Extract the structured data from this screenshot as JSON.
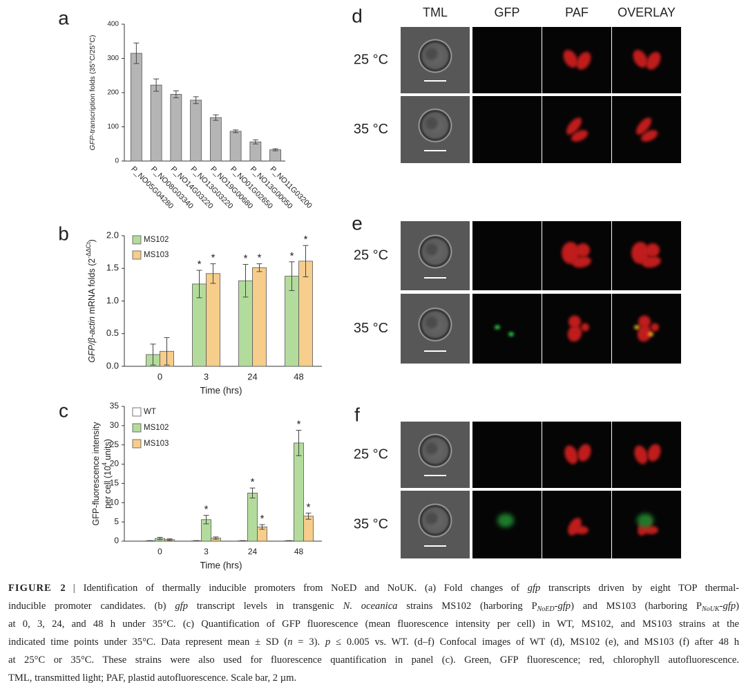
{
  "chart_data": [
    {
      "type": "bar",
      "panel": "a",
      "y_label": [
        [
          {
            "t": "GFP",
            "i": true
          },
          {
            "t": "-transcription folds (35°C/25°C)"
          }
        ]
      ],
      "categories": [
        "P_NO05G04280",
        "P_NO08G03340",
        "P_NO14G03220",
        "P_NO13G03220",
        "P_NO19G00680",
        "P_NO01G02650",
        "P_NO13G00050",
        "P_NO11G03200"
      ],
      "values": [
        315,
        222,
        195,
        178,
        127,
        87,
        56,
        33
      ],
      "errors": [
        30,
        18,
        10,
        10,
        8,
        4,
        6,
        3
      ],
      "color": "#b5b5b5",
      "ylim": [
        0,
        400
      ],
      "yticks": [
        0,
        100,
        200,
        300,
        400
      ]
    },
    {
      "type": "grouped_bar",
      "panel": "b",
      "y_label": [
        [
          {
            "t": "GFP/β-actin",
            "i": true
          },
          {
            "t": " mRNA folds (2"
          },
          {
            "t": "-ΔΔCt",
            "sup": true
          },
          {
            "t": ")"
          }
        ]
      ],
      "x_label": "Time (hrs)",
      "categories": [
        "0",
        "3",
        "24",
        "48"
      ],
      "series": [
        {
          "name": "MS102",
          "color": "#b3dc9c",
          "values": [
            0.18,
            1.26,
            1.31,
            1.38
          ],
          "errors": [
            0.16,
            0.21,
            0.25,
            0.22
          ],
          "markers": [
            null,
            "*",
            "*",
            "*"
          ]
        },
        {
          "name": "MS103",
          "color": "#f6cd8b",
          "values": [
            0.23,
            1.42,
            1.51,
            1.61
          ],
          "errors": [
            0.21,
            0.15,
            0.06,
            0.24
          ],
          "markers": [
            null,
            "*",
            "*",
            "*"
          ]
        }
      ],
      "ylim": [
        0,
        2
      ],
      "yticks": [
        {
          "value": 0,
          "label": "0.0"
        },
        0.5,
        {
          "value": 1,
          "label": "1.0"
        },
        1.5,
        {
          "value": 2,
          "label": "2.0"
        }
      ],
      "legend": "upper left"
    },
    {
      "type": "grouped_bar",
      "panel": "c",
      "y_label": [
        [
          {
            "t": "GFP-fluorescence intensity"
          }
        ],
        [
          {
            "t": "per cell (10"
          },
          {
            "t": "4",
            "sup": true
          },
          {
            "t": " units)"
          }
        ]
      ],
      "x_label": "Time (hrs)",
      "categories": [
        "0",
        "3",
        "24",
        "48"
      ],
      "series": [
        {
          "name": "WT",
          "color": "#ffffff",
          "values": [
            0.1,
            0.1,
            0.1,
            0.1
          ],
          "errors": [
            0.05,
            0.05,
            0.05,
            0.05
          ],
          "markers": [
            null,
            null,
            null,
            null
          ]
        },
        {
          "name": "MS102",
          "color": "#b3dc9c",
          "values": [
            0.7,
            5.6,
            12.5,
            25.5
          ],
          "errors": [
            0.3,
            1.1,
            1.3,
            3.3
          ],
          "markers": [
            null,
            "*",
            "*",
            "*"
          ]
        },
        {
          "name": "MS103",
          "color": "#f6cd8b",
          "values": [
            0.4,
            0.8,
            3.7,
            6.5
          ],
          "errors": [
            0.2,
            0.3,
            0.6,
            0.8
          ],
          "markers": [
            null,
            null,
            "*",
            "*"
          ]
        }
      ],
      "ylim": [
        0,
        35
      ],
      "yticks": [
        0,
        5,
        10,
        15,
        20,
        25,
        30,
        35
      ],
      "legend": "upper left"
    }
  ],
  "micrographs": {
    "columns": [
      "TML",
      "GFP",
      "PAF",
      "OVERLAY"
    ],
    "panels": [
      {
        "label": "d",
        "rows": [
          "25 °C",
          "35 °C"
        ]
      },
      {
        "label": "e",
        "rows": [
          "25 °C",
          "35 °C"
        ]
      },
      {
        "label": "f",
        "rows": [
          "25 °C",
          "35 °C"
        ]
      }
    ]
  },
  "caption": {
    "label": "FIGURE 2",
    "separator": "|",
    "lines": [
      [
        {
          "t": "Identification of thermally inducible promoters from NoED and NoUK. (a) Fold changes of "
        },
        {
          "t": "gfp",
          "i": true
        },
        {
          "t": " transcripts driven by eight TOP thermal-"
        }
      ],
      [
        {
          "t": "inducible promoter candidates. (b) "
        },
        {
          "t": "gfp",
          "i": true
        },
        {
          "t": " transcript levels in transgenic "
        },
        {
          "t": "N. oceanica",
          "i": true
        },
        {
          "t": " strains MS102 (harboring P"
        },
        {
          "t": "NoED",
          "i": true,
          "sub": true
        },
        {
          "t": "-"
        },
        {
          "t": "gfp",
          "i": true
        },
        {
          "t": ") and MS103 (harboring P"
        },
        {
          "t": "NoUK",
          "i": true,
          "sub": true
        },
        {
          "t": "-"
        },
        {
          "t": "gfp",
          "i": true
        },
        {
          "t": ")"
        }
      ],
      [
        {
          "t": "at 0, 3, 24, and 48 h under 35°C. (c) Quantification of GFP fluorescence (mean fluorescence intensity per cell) in WT, MS102, and MS103 strains at the"
        }
      ],
      [
        {
          "t": "indicated time points under 35°C. Data represent mean ± SD ("
        },
        {
          "t": "n",
          "i": true
        },
        {
          "t": " = 3). "
        },
        {
          "t": "p",
          "i": true
        },
        {
          "t": " ≤ 0.005 vs. WT. (d–f) Confocal images of WT (d), MS102 (e), and MS103 (f) after 48 h"
        }
      ],
      [
        {
          "t": "at 25°C or 35°C. These strains were also used for fluorescence quantification in panel (c). Green, GFP fluorescence; red, chlorophyll autofluorescence."
        }
      ],
      [
        {
          "t": "TML, transmitted light; PAF, plastid autofluorescence. Scale bar, 2 µm."
        }
      ]
    ]
  }
}
